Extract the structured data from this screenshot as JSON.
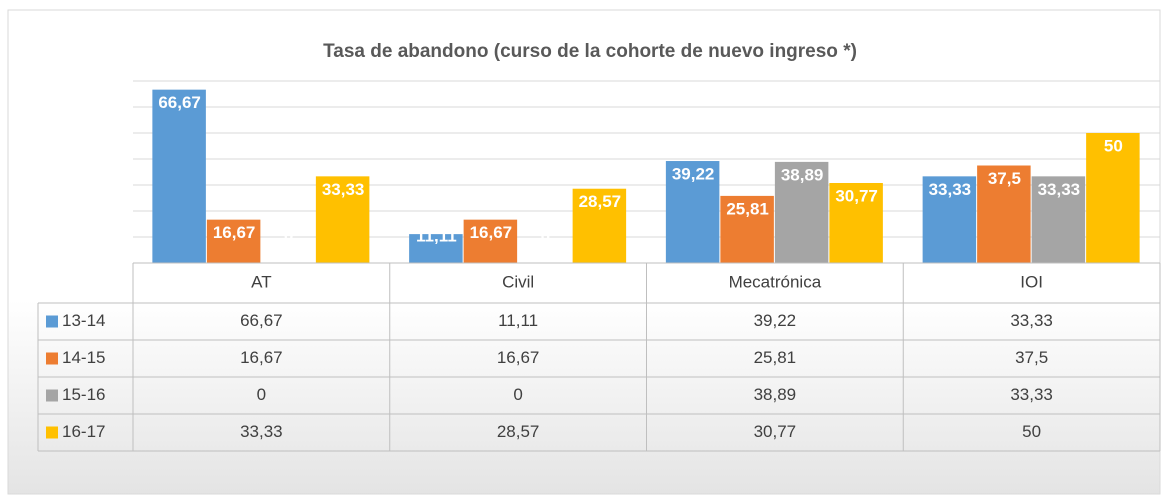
{
  "chart_data": {
    "type": "bar",
    "title": "Tasa de abandono (curso de la cohorte de nuevo ingreso *)",
    "categories": [
      "AT",
      "Civil",
      "Mecatrónica",
      "IOI"
    ],
    "series": [
      {
        "name": "13-14",
        "color": "#5b9bd5",
        "values": [
          66.67,
          11.11,
          39.22,
          33.33
        ],
        "value_labels": [
          "66,67",
          "11,11",
          "39,22",
          "33,33"
        ]
      },
      {
        "name": "14-15",
        "color": "#ed7d31",
        "values": [
          16.67,
          16.67,
          25.81,
          37.5
        ],
        "value_labels": [
          "16,67",
          "16,67",
          "25,81",
          "37,5"
        ]
      },
      {
        "name": "15-16",
        "color": "#a5a5a5",
        "values": [
          0,
          0,
          38.89,
          33.33
        ],
        "value_labels": [
          "0",
          "0",
          "38,89",
          "33,33"
        ]
      },
      {
        "name": "16-17",
        "color": "#ffc000",
        "values": [
          33.33,
          28.57,
          30.77,
          50
        ],
        "value_labels": [
          "33,33",
          "28,57",
          "30,77",
          "50"
        ]
      }
    ],
    "ylim": [
      0,
      70
    ],
    "yticks": [
      0,
      10,
      20,
      30,
      40,
      50,
      60,
      70
    ],
    "grid": true,
    "data_table": true
  }
}
